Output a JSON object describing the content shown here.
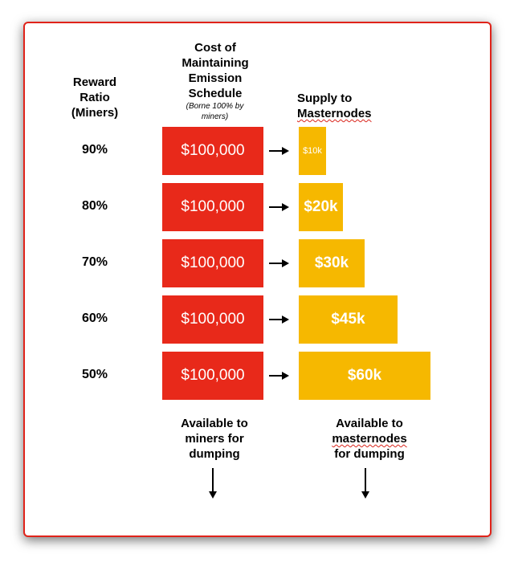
{
  "headers": {
    "reward_ratio": [
      "Reward",
      "Ratio",
      "(Miners)"
    ],
    "cost": [
      "Cost of",
      "Maintaining",
      "Emission",
      "Schedule"
    ],
    "cost_note": [
      "(Borne 100% by",
      "miners)"
    ],
    "supply_line1": "Supply to",
    "supply_line2": "Masternodes"
  },
  "rows": [
    {
      "ratio": "90%",
      "cost": "$100,000",
      "supply": "$10k",
      "supply_value": 10
    },
    {
      "ratio": "80%",
      "cost": "$100,000",
      "supply": "$20k",
      "supply_value": 20
    },
    {
      "ratio": "70%",
      "cost": "$100,000",
      "supply": "$30k",
      "supply_value": 30
    },
    {
      "ratio": "60%",
      "cost": "$100,000",
      "supply": "$45k",
      "supply_value": 45
    },
    {
      "ratio": "50%",
      "cost": "$100,000",
      "supply": "$60k",
      "supply_value": 60
    }
  ],
  "footers": {
    "miners": [
      "Available to",
      "miners for",
      "dumping"
    ],
    "masternodes_line1": "Available to",
    "masternodes_line2": "masternodes",
    "masternodes_line3": "for dumping"
  },
  "colors": {
    "frame": "#e0231a",
    "cost_box": "#e8291a",
    "supply_box": "#f6b800"
  },
  "icons": {
    "row_arrow": "right-arrow-icon",
    "down_arrow": "down-arrow-icon"
  }
}
